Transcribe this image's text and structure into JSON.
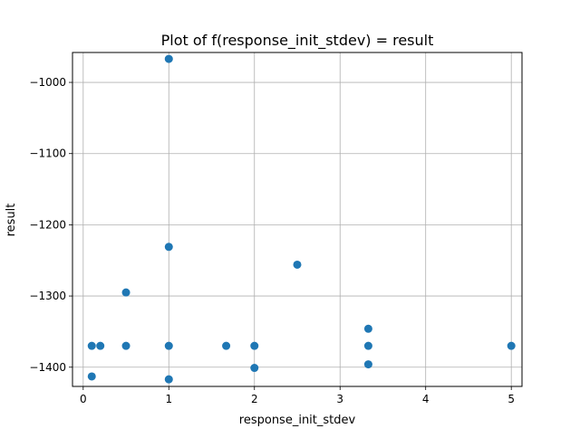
{
  "chart_data": {
    "type": "scatter",
    "title": "Plot of f(response_init_stdev) = result",
    "xlabel": "response_init_stdev",
    "ylabel": "result",
    "xlim": [
      -0.125,
      5.125
    ],
    "ylim": [
      -1427,
      -958
    ],
    "grid": true,
    "x_ticks": [
      0,
      1,
      2,
      3,
      4,
      5
    ],
    "x_tick_labels": [
      "0",
      "1",
      "2",
      "3",
      "4",
      "5"
    ],
    "y_ticks": [
      -1000,
      -1100,
      -1200,
      -1300,
      -1400
    ],
    "y_tick_labels": [
      "−1000",
      "−1100",
      "−1200",
      "−1300",
      "−1400"
    ],
    "marker_color": "#1f77b4",
    "points": [
      {
        "x": 1.0,
        "y": -967
      },
      {
        "x": 1.0,
        "y": -1231
      },
      {
        "x": 2.5,
        "y": -1256
      },
      {
        "x": 0.5,
        "y": -1295
      },
      {
        "x": 3.33,
        "y": -1346
      },
      {
        "x": 0.1,
        "y": -1370
      },
      {
        "x": 0.2,
        "y": -1370
      },
      {
        "x": 0.5,
        "y": -1370
      },
      {
        "x": 1.0,
        "y": -1370
      },
      {
        "x": 1.67,
        "y": -1370
      },
      {
        "x": 2.0,
        "y": -1370
      },
      {
        "x": 3.33,
        "y": -1370
      },
      {
        "x": 5.0,
        "y": -1370
      },
      {
        "x": 3.33,
        "y": -1396
      },
      {
        "x": 2.0,
        "y": -1401
      },
      {
        "x": 0.1,
        "y": -1413
      },
      {
        "x": 1.0,
        "y": -1417
      }
    ]
  }
}
